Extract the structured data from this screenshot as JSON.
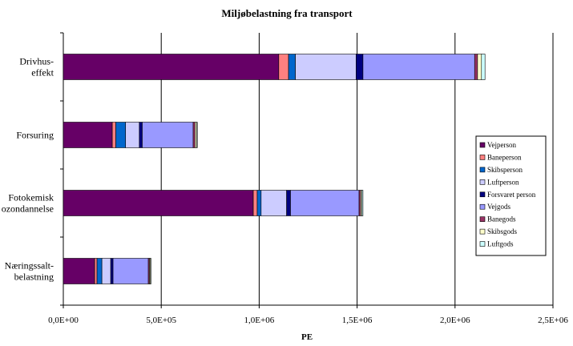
{
  "chart_data": {
    "type": "bar",
    "orientation": "horizontal",
    "stacked": true,
    "title": "Miljøbelastning fra transport",
    "xlabel": "PE",
    "ylabel": "",
    "xlim": [
      0,
      2500000
    ],
    "x_ticks": [
      "0,0E+00",
      "5,0E+05",
      "1,0E+06",
      "1,5E+06",
      "2,0E+06",
      "2,5E+06"
    ],
    "grid": "vertical major gridlines",
    "legend_position": "right",
    "categories": [
      [
        "Drivhus-",
        "effekt"
      ],
      [
        "Forsuring"
      ],
      [
        "Fotokemisk",
        "ozondannelse"
      ],
      [
        "Næringssalt-",
        "belastning"
      ]
    ],
    "series": [
      {
        "name": "Vejperson",
        "color": "#660066",
        "values": [
          1100000,
          250000,
          970000,
          160000
        ]
      },
      {
        "name": "Baneperson",
        "color": "#FF8080",
        "values": [
          50000,
          18000,
          20000,
          12000
        ]
      },
      {
        "name": "Skibsperson",
        "color": "#0066CC",
        "values": [
          35000,
          50000,
          20000,
          25000
        ]
      },
      {
        "name": "Luftperson",
        "color": "#CCCCFF",
        "values": [
          310000,
          70000,
          130000,
          45000
        ]
      },
      {
        "name": "Forsvaret person",
        "color": "#000080",
        "values": [
          35000,
          15000,
          20000,
          12000
        ]
      },
      {
        "name": "Vejgods",
        "color": "#9999FF",
        "values": [
          570000,
          260000,
          350000,
          180000
        ]
      },
      {
        "name": "Banegods",
        "color": "#993366",
        "values": [
          15000,
          10000,
          8000,
          6000
        ]
      },
      {
        "name": "Skibsgods",
        "color": "#FFFFCC",
        "values": [
          20000,
          8000,
          6000,
          5000
        ]
      },
      {
        "name": "Luftgods",
        "color": "#CCFFFF",
        "values": [
          18000,
          3000,
          6000,
          3000
        ]
      }
    ]
  }
}
